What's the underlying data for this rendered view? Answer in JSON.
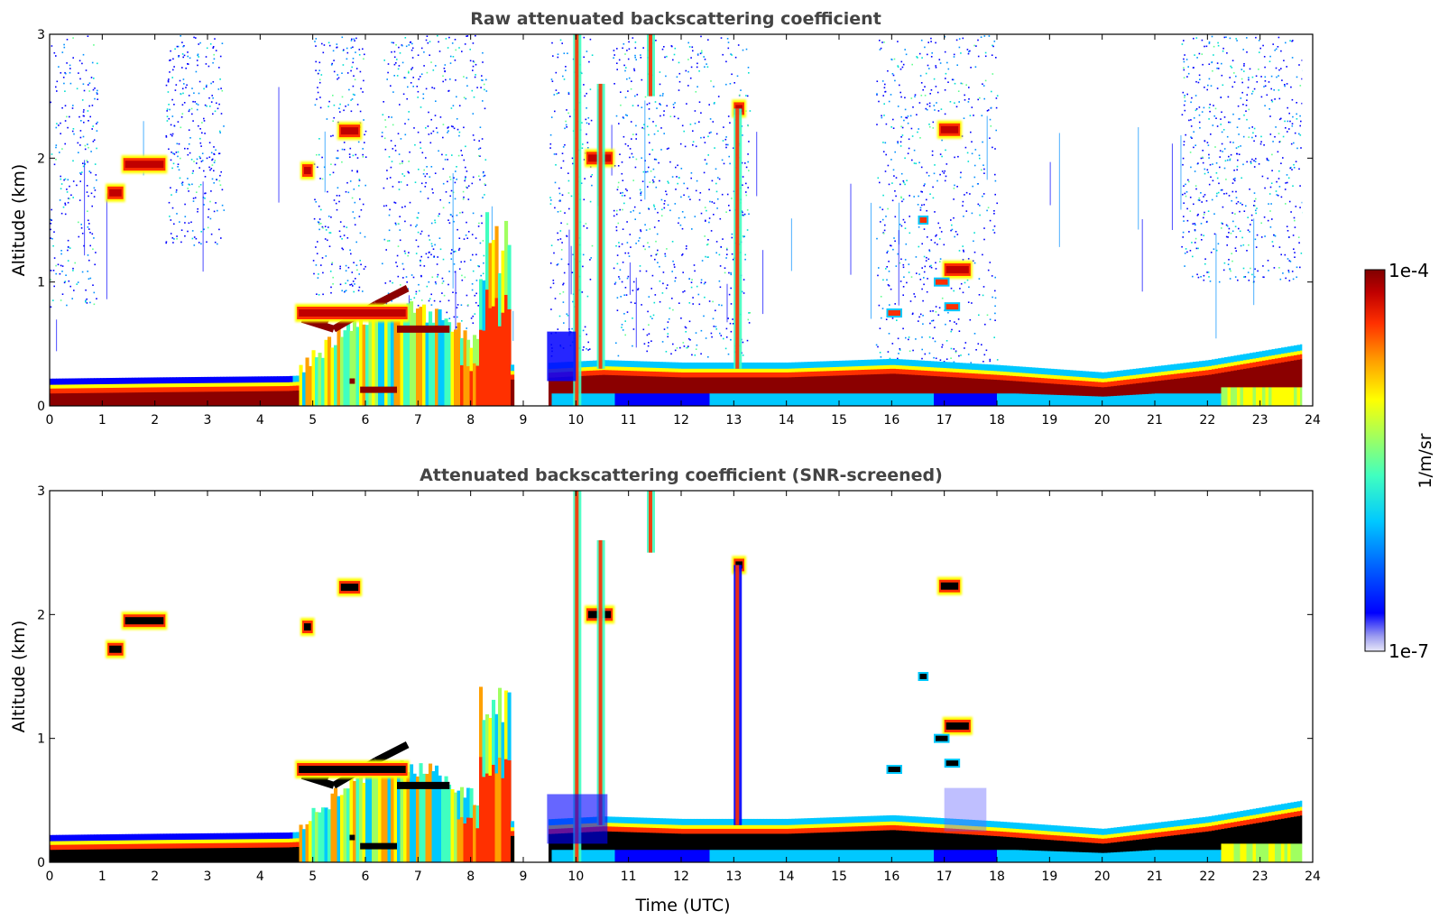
{
  "chart_data": [
    {
      "type": "heatmap",
      "title": "Raw attenuated backscattering coefficient",
      "xlabel": "",
      "ylabel": "Altitude (km)",
      "xlim": [
        0,
        24
      ],
      "ylim": [
        0,
        3
      ],
      "xticks": [
        "0",
        "1",
        "2",
        "3",
        "4",
        "5",
        "6",
        "7",
        "8",
        "9",
        "10",
        "11",
        "12",
        "13",
        "14",
        "15",
        "16",
        "17",
        "18",
        "19",
        "20",
        "21",
        "22",
        "23",
        "24"
      ],
      "yticks": [
        "0",
        "1",
        "2",
        "3"
      ],
      "no_data_gap_utc": [
        8.85,
        9.45
      ],
      "boundary_layer_top_km": [
        {
          "t": 0,
          "z": 0.17
        },
        {
          "t": 2,
          "z": 0.18
        },
        {
          "t": 4.5,
          "z": 0.19
        },
        {
          "t": 10.5,
          "z": 0.32
        },
        {
          "t": 12,
          "z": 0.3
        },
        {
          "t": 14,
          "z": 0.3
        },
        {
          "t": 16,
          "z": 0.33
        },
        {
          "t": 18,
          "z": 0.28
        },
        {
          "t": 20,
          "z": 0.22
        },
        {
          "t": 22,
          "z": 0.32
        },
        {
          "t": 23.8,
          "z": 0.45
        }
      ],
      "cloud_features": [
        {
          "t_start": 1.1,
          "t_end": 1.4,
          "z_km": 1.72,
          "level": "high"
        },
        {
          "t_start": 1.4,
          "t_end": 2.2,
          "z_km": 1.95,
          "level": "high"
        },
        {
          "t_start": 4.8,
          "t_end": 5.0,
          "z_km": 1.9,
          "level": "high"
        },
        {
          "t_start": 5.5,
          "t_end": 5.9,
          "z_km": 2.22,
          "level": "high"
        },
        {
          "t_start": 4.7,
          "t_end": 6.8,
          "z_km": 0.75,
          "level": "high"
        },
        {
          "t_start": 10.2,
          "t_end": 10.7,
          "z_km": 2.0,
          "level": "high"
        },
        {
          "t_start": 13.0,
          "t_end": 13.2,
          "z_km": 2.4,
          "level": "high"
        },
        {
          "t_start": 16.9,
          "t_end": 17.3,
          "z_km": 2.23,
          "level": "high"
        },
        {
          "t_start": 17.0,
          "t_end": 17.5,
          "z_km": 1.1,
          "level": "high"
        }
      ]
    },
    {
      "type": "heatmap",
      "title": "Attenuated backscattering coefficient (SNR-screened)",
      "xlabel": "Time (UTC)",
      "ylabel": "Altitude (km)",
      "xlim": [
        0,
        24
      ],
      "ylim": [
        0,
        3
      ],
      "xticks": [
        "0",
        "1",
        "2",
        "3",
        "4",
        "5",
        "6",
        "7",
        "8",
        "9",
        "10",
        "11",
        "12",
        "13",
        "14",
        "15",
        "16",
        "17",
        "18",
        "19",
        "20",
        "21",
        "22",
        "23",
        "24"
      ],
      "yticks": [
        "0",
        "1",
        "2",
        "3"
      ],
      "no_data_gap_utc": [
        8.85,
        9.45
      ],
      "saturated_color": "#000000"
    }
  ],
  "colorbar": {
    "label": "1/m/sr",
    "max_label": "1e-4",
    "min_label": "1e-7",
    "scale": "log",
    "colors": [
      "#e8e8f8",
      "#9a9af0",
      "#0000ff",
      "#0060ff",
      "#00c8ff",
      "#40ffc0",
      "#a0ff60",
      "#ffff00",
      "#ffa000",
      "#ff3000",
      "#c00000",
      "#800000"
    ]
  }
}
